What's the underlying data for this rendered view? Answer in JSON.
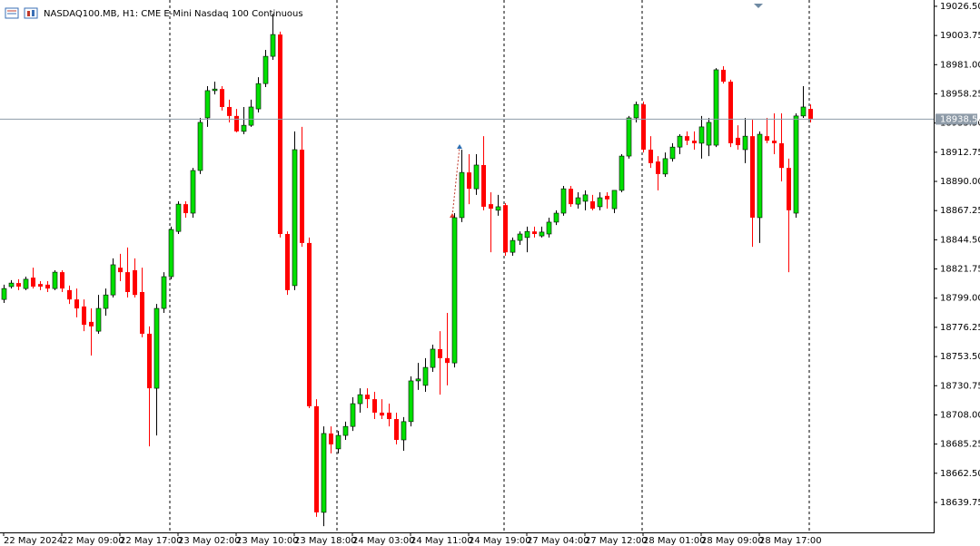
{
  "chart_data": {
    "type": "candlestick",
    "title": "NASDAQ100.MB, H1:  CME E-Mini Nasdaq 100 Continuous",
    "categories": [
      "22 May 2024",
      null,
      null,
      null,
      null,
      null,
      null,
      null,
      "22 May 09:00",
      null,
      null,
      null,
      null,
      null,
      null,
      null,
      "22 May 17:00",
      null,
      null,
      null,
      null,
      null,
      null,
      null,
      "23 May 02:00",
      null,
      null,
      null,
      null,
      null,
      null,
      null,
      "23 May 10:00",
      null,
      null,
      null,
      null,
      null,
      null,
      null,
      "23 May 18:00",
      null,
      null,
      null,
      null,
      null,
      null,
      null,
      "24 May 03:00",
      null,
      null,
      null,
      null,
      null,
      null,
      null,
      "24 May 11:00",
      null,
      null,
      null,
      null,
      null,
      null,
      null,
      "24 May 19:00",
      null,
      null,
      null,
      null,
      null,
      null,
      null,
      "27 May 04:00",
      null,
      null,
      null,
      null,
      null,
      null,
      null,
      "27 May 12:00",
      null,
      null,
      null,
      null,
      null,
      null,
      null,
      "28 May 01:00",
      null,
      null,
      null,
      null,
      null,
      null,
      null,
      "28 May 09:00",
      null,
      null,
      null,
      null,
      null,
      null,
      null,
      "28 May 17:00",
      null,
      null,
      null,
      null,
      null,
      null,
      null
    ],
    "open": [
      18798.0,
      18808.0,
      18810.75,
      18806.5,
      18815.0,
      18810.0,
      18809.5,
      18806.5,
      18819.25,
      18805.25,
      18798.0,
      18792.5,
      18780.5,
      18773.25,
      18791.0,
      18801.5,
      18822.75,
      18819.25,
      18820.75,
      18803.75,
      18771.25,
      18728.75,
      18791.0,
      18815.75,
      18851.0,
      18872.25,
      18865.25,
      18898.5,
      18939.5,
      18960.75,
      18962.0,
      18948.0,
      18941.0,
      18929.0,
      18933.75,
      18946.5,
      18966.25,
      18987.5,
      19004.5,
      18849.0,
      18808.75,
      18914.75,
      18842.0,
      18714.75,
      18632.0,
      18693.5,
      18681.5,
      18692.0,
      18699.0,
      18716.75,
      18723.75,
      18720.25,
      18709.75,
      18709.75,
      18704.75,
      18688.5,
      18702.75,
      18734.5,
      18731.0,
      18745.0,
      18759.25,
      18752.25,
      18748.5,
      18861.75,
      18897.0,
      18884.25,
      18902.75,
      18872.25,
      18867.5,
      18871.5,
      18834.75,
      18844.0,
      18846.25,
      18851.0,
      18847.5,
      18849.0,
      18858.25,
      18865.25,
      18884.25,
      18872.25,
      18874.5,
      18874.5,
      18870.25,
      18878.75,
      18868.75,
      18883.0,
      18909.75,
      18939.5,
      18950.0,
      18914.75,
      18905.5,
      18895.75,
      18907.75,
      18916.75,
      18925.25,
      18921.75,
      18919.75,
      18918.25,
      18918.25,
      18977.0,
      18967.75,
      18924.0,
      18914.75,
      18925.25,
      18861.75,
      18925.25,
      18921.75,
      18919.75,
      18900.5,
      18865.25,
      18941.0,
      18946.5
    ],
    "high": [
      18809.5,
      18813.0,
      18813.75,
      18815.75,
      18822.75,
      18812.25,
      18812.25,
      18820.75,
      18820.75,
      18808.75,
      18806.5,
      18798.0,
      18791.0,
      18801.5,
      18806.5,
      18830.0,
      18833.5,
      18838.5,
      18830.0,
      18822.75,
      18777.0,
      18794.5,
      18819.25,
      18854.75,
      18874.5,
      18874.5,
      18900.5,
      18939.5,
      18964.25,
      18967.75,
      18964.25,
      18953.75,
      18946.5,
      18948.0,
      18953.75,
      18971.25,
      18992.5,
      19020.75,
      19006.75,
      18851.0,
      18929.0,
      18932.5,
      18846.25,
      18720.25,
      18699.0,
      18699.0,
      18695.5,
      18702.75,
      18721.75,
      18728.75,
      18728.75,
      18726.0,
      18720.25,
      18716.75,
      18709.75,
      18706.25,
      18738.0,
      18748.5,
      18752.25,
      18762.75,
      18773.25,
      18787.5,
      18865.25,
      18914.75,
      18911.25,
      18911.25,
      18925.25,
      18881.5,
      18879.5,
      18873.0,
      18846.25,
      18851.0,
      18854.75,
      18854.75,
      18854.75,
      18861.75,
      18867.5,
      18886.5,
      18886.5,
      18881.5,
      18883.0,
      18879.5,
      18881.5,
      18881.5,
      18883.0,
      18911.25,
      18941.0,
      18952.25,
      18952.25,
      18925.25,
      18909.75,
      18912.5,
      18919.75,
      18926.75,
      18929.0,
      18929.0,
      18941.0,
      18939.5,
      18978.25,
      18979.75,
      18969.25,
      18933.75,
      18939.5,
      18938.0,
      18929.0,
      18939.5,
      18943.0,
      18943.0,
      18907.75,
      18943.0,
      18964.25,
      18950.0
    ],
    "low": [
      18795.25,
      18806.5,
      18805.25,
      18805.25,
      18806.5,
      18805.25,
      18803.75,
      18805.25,
      18803.75,
      18794.5,
      18784.0,
      18773.25,
      18754.25,
      18771.25,
      18785.25,
      18799.5,
      18812.25,
      18799.5,
      18799.5,
      18768.5,
      18683.5,
      18692.0,
      18787.5,
      18813.75,
      18849.0,
      18861.75,
      18861.75,
      18895.75,
      18932.5,
      18957.75,
      18945.25,
      18936.0,
      18928.25,
      18926.75,
      18932.5,
      18943.75,
      18963.5,
      18984.75,
      18846.25,
      18801.5,
      18805.25,
      18839.0,
      18713.25,
      18628.5,
      18621.25,
      18678.0,
      18678.0,
      18688.5,
      18695.5,
      18709.75,
      18713.25,
      18704.75,
      18704.75,
      18699.0,
      18685.0,
      18680.0,
      18699.0,
      18727.5,
      18726.0,
      18741.5,
      18723.75,
      18731.0,
      18745.0,
      18858.25,
      18872.25,
      18879.5,
      18867.5,
      18834.75,
      18863.25,
      18832.0,
      18832.0,
      18840.5,
      18834.75,
      18846.25,
      18846.25,
      18846.25,
      18856.0,
      18863.25,
      18870.25,
      18868.75,
      18867.5,
      18867.5,
      18867.5,
      18868.75,
      18865.25,
      18881.5,
      18907.75,
      18936.0,
      18912.5,
      18900.5,
      18883.0,
      18893.5,
      18905.5,
      18911.25,
      18918.25,
      18914.75,
      18907.75,
      18909.75,
      18916.75,
      18966.25,
      18916.75,
      18914.75,
      18904.25,
      18839.0,
      18842.0,
      18919.75,
      18911.25,
      18890.0,
      18819.25,
      18861.75,
      18939.5,
      18936.0
    ],
    "close": [
      18806.5,
      18810.75,
      18808.0,
      18813.75,
      18808.0,
      18808.0,
      18806.5,
      18819.25,
      18806.5,
      18798.0,
      18791.0,
      18778.25,
      18777.0,
      18791.0,
      18801.5,
      18825.0,
      18819.25,
      18803.75,
      18801.5,
      18771.25,
      18728.75,
      18791.0,
      18815.75,
      18852.5,
      18872.25,
      18865.25,
      18898.5,
      18936.0,
      18960.75,
      18962.0,
      18948.0,
      18941.0,
      18929.0,
      18933.75,
      18948.0,
      18966.25,
      18987.5,
      19004.5,
      18849.0,
      18805.25,
      18914.75,
      18842.0,
      18714.75,
      18632.0,
      18693.5,
      18685.0,
      18692.0,
      18699.0,
      18716.75,
      18723.75,
      18720.25,
      18709.75,
      18707.5,
      18704.75,
      18688.5,
      18702.75,
      18734.5,
      18736.0,
      18745.0,
      18759.25,
      18752.25,
      18748.5,
      18861.75,
      18897.0,
      18884.25,
      18902.75,
      18870.25,
      18868.75,
      18870.25,
      18834.75,
      18844.0,
      18849.0,
      18851.0,
      18849.0,
      18850.5,
      18858.25,
      18865.25,
      18884.25,
      18872.25,
      18877.25,
      18879.5,
      18868.75,
      18877.25,
      18876.0,
      18883.0,
      18909.75,
      18939.5,
      18950.0,
      18914.75,
      18904.25,
      18895.75,
      18907.75,
      18916.75,
      18925.25,
      18921.75,
      18919.75,
      18932.5,
      18936.0,
      18977.0,
      18967.75,
      18919.75,
      18918.25,
      18925.25,
      18861.75,
      18926.75,
      18921.75,
      18919.75,
      18900.5,
      18867.5,
      18941.0,
      18948.0,
      18938.5
    ],
    "up_color": "#00e000",
    "down_color": "#ff0000",
    "ylim": [
      18616.4,
      19031.4
    ],
    "yticks": [
      {
        "value": 19026.5,
        "label": "19026.50"
      },
      {
        "value": 19003.75,
        "label": "19003.75"
      },
      {
        "value": 18981,
        "label": "18981.00"
      },
      {
        "value": 18958.25,
        "label": "18958.25"
      },
      {
        "value": 18935.5,
        "label": "18935.50"
      },
      {
        "value": 18912.75,
        "label": "18912.75"
      },
      {
        "value": 18890,
        "label": "18890.00"
      },
      {
        "value": 18867.25,
        "label": "18867.25"
      },
      {
        "value": 18844.5,
        "label": "18844.50"
      },
      {
        "value": 18821.75,
        "label": "18821.75"
      },
      {
        "value": 18799,
        "label": "18799.00"
      },
      {
        "value": 18776.25,
        "label": "18776.25"
      },
      {
        "value": 18753.5,
        "label": "18753.50"
      },
      {
        "value": 18730.75,
        "label": "18730.75"
      },
      {
        "value": 18708,
        "label": "18708.00"
      },
      {
        "value": 18685.25,
        "label": "18685.25"
      },
      {
        "value": 18662.5,
        "label": "18662.50"
      },
      {
        "value": 18639.75,
        "label": "18639.75"
      }
    ],
    "last_price": {
      "value": 18938.5,
      "label": "18938.50"
    }
  }
}
